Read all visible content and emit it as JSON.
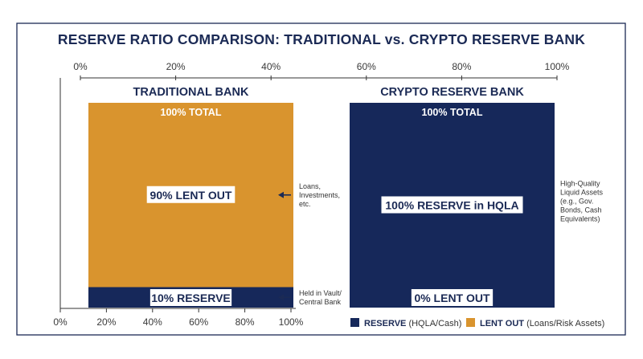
{
  "chart_data": {
    "type": "bar",
    "title": "RESERVE RATIO COMPARISON: TRADITIONAL vs. CRYPTO RESERVE BANK",
    "top_axis_ticks": [
      "0%",
      "20%",
      "40%",
      "60%",
      "80%",
      "100%"
    ],
    "bottom_axis_ticks": [
      "0%",
      "20%",
      "40%",
      "60%",
      "80%",
      "100%"
    ],
    "ylim": [
      0,
      100
    ],
    "categories": [
      "TRADITIONAL BANK",
      "CRYPTO RESERVE BANK"
    ],
    "series": [
      {
        "name": "RESERVE",
        "name_detail": "(HQLA/Cash)",
        "color": "#16285a",
        "values": [
          10,
          100
        ]
      },
      {
        "name": "LENT OUT",
        "name_detail": "(Loans/Risk Assets)",
        "color": "#d9942e",
        "values": [
          90,
          0
        ]
      }
    ],
    "panels": [
      {
        "title": "TRADITIONAL BANK",
        "total_label": "100% TOTAL",
        "segments": [
          {
            "series": "RESERVE",
            "value": 10,
            "label": "10% RESERVE"
          },
          {
            "series": "LENT OUT",
            "value": 90,
            "label": "90% LENT OUT"
          }
        ],
        "annotations": [
          {
            "lines": [
              "Loans,",
              "Investments,",
              "etc."
            ],
            "at_value": 55
          },
          {
            "lines": [
              "Held in Vault/",
              "Central Bank"
            ],
            "at_value": 5
          }
        ]
      },
      {
        "title": "CRYPTO RESERVE BANK",
        "total_label": "100% TOTAL",
        "segments": [
          {
            "series": "RESERVE",
            "value": 100,
            "label": "100% RESERVE in HQLA"
          },
          {
            "series": "LENT OUT",
            "value": 0,
            "label": "0% LENT OUT"
          }
        ],
        "annotations": [
          {
            "lines": [
              "High-Quality",
              "Liquid Assets",
              "(e.g., Gov.",
              "Bonds, Cash",
              "Equivalents)"
            ],
            "at_value": 52
          }
        ]
      }
    ],
    "legend_position": "bottom-right",
    "grid": false
  }
}
